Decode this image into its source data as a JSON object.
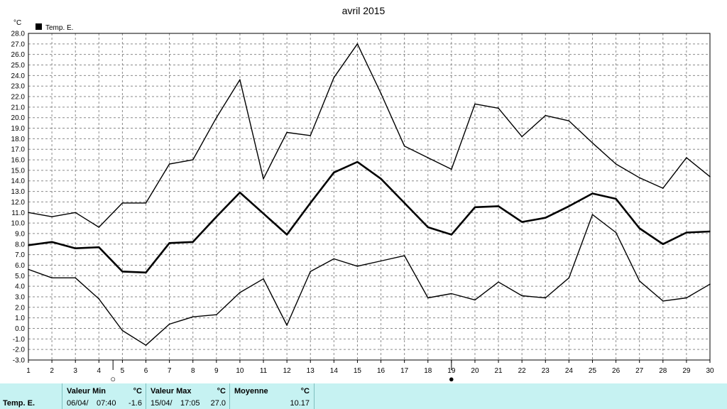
{
  "chart_data": {
    "type": "line",
    "title": "avril 2015",
    "ylabel": "°C",
    "xlabel": "",
    "ylim": [
      -3.0,
      28.0
    ],
    "xlim": [
      1,
      30
    ],
    "grid": true,
    "legend_position": "top-left",
    "x": [
      1,
      2,
      3,
      4,
      5,
      6,
      7,
      8,
      9,
      10,
      11,
      12,
      13,
      14,
      15,
      16,
      17,
      18,
      19,
      20,
      21,
      22,
      23,
      24,
      25,
      26,
      27,
      28,
      29,
      30
    ],
    "series": [
      {
        "name": "Temp. E.",
        "role": "mean",
        "color": "#000000",
        "values": [
          7.9,
          8.2,
          7.6,
          7.7,
          5.4,
          5.3,
          8.1,
          8.2,
          10.6,
          12.9,
          10.9,
          8.9,
          11.9,
          14.8,
          15.8,
          14.2,
          11.9,
          9.6,
          8.9,
          11.5,
          11.6,
          10.1,
          10.5,
          11.6,
          12.8,
          12.3,
          9.5,
          8.0,
          9.1,
          9.2
        ]
      },
      {
        "role": "max",
        "color": "#000000",
        "values": [
          11.0,
          10.6,
          11.0,
          9.6,
          11.9,
          11.9,
          15.6,
          16.0,
          20.0,
          23.6,
          14.2,
          18.6,
          18.3,
          23.8,
          27.0,
          22.3,
          17.3,
          16.2,
          15.1,
          21.3,
          20.9,
          18.2,
          20.2,
          19.7,
          17.6,
          15.6,
          14.3,
          13.3,
          16.2,
          14.4
        ]
      },
      {
        "role": "min",
        "color": "#000000",
        "values": [
          5.6,
          4.8,
          4.8,
          2.8,
          -0.2,
          -1.6,
          0.4,
          1.1,
          1.3,
          3.4,
          4.7,
          0.3,
          5.4,
          6.6,
          5.9,
          6.4,
          6.9,
          2.9,
          3.3,
          2.7,
          4.4,
          3.1,
          2.9,
          4.8,
          10.8,
          9.1,
          4.5,
          2.6,
          2.9,
          4.2
        ]
      }
    ],
    "y_ticks": [
      "-3.0",
      "-2.0",
      "-1.0",
      "0.0",
      "1.0",
      "2.0",
      "3.0",
      "4.0",
      "5.0",
      "6.0",
      "7.0",
      "8.0",
      "9.0",
      "10.0",
      "11.0",
      "12.0",
      "13.0",
      "14.0",
      "15.0",
      "16.0",
      "17.0",
      "18.0",
      "19.0",
      "20.0",
      "21.0",
      "22.0",
      "23.0",
      "24.0",
      "25.0",
      "26.0",
      "27.0",
      "28.0"
    ],
    "x_ticks": [
      "1",
      "2",
      "3",
      "4",
      "5",
      "6",
      "7",
      "8",
      "9",
      "10",
      "11",
      "12",
      "13",
      "14",
      "15",
      "16",
      "17",
      "18",
      "19",
      "20",
      "21",
      "22",
      "23",
      "24",
      "25",
      "26",
      "27",
      "28",
      "29",
      "30"
    ],
    "moon_phases": [
      {
        "day": 4.6,
        "phase": "new",
        "symbol": "○"
      },
      {
        "day": 19,
        "phase": "full",
        "symbol": "●"
      }
    ]
  },
  "footer": {
    "row_label": "Temp. E.",
    "min": {
      "header": "Valeur Min",
      "unit": "°C",
      "date": "06/04/",
      "time": "07:40",
      "value": "-1.6"
    },
    "max": {
      "header": "Valeur Max",
      "unit": "°C",
      "date": "15/04/",
      "time": "17:05",
      "value": "27.0"
    },
    "mean": {
      "header": "Moyenne",
      "unit": "°C",
      "value": "10.17"
    }
  }
}
